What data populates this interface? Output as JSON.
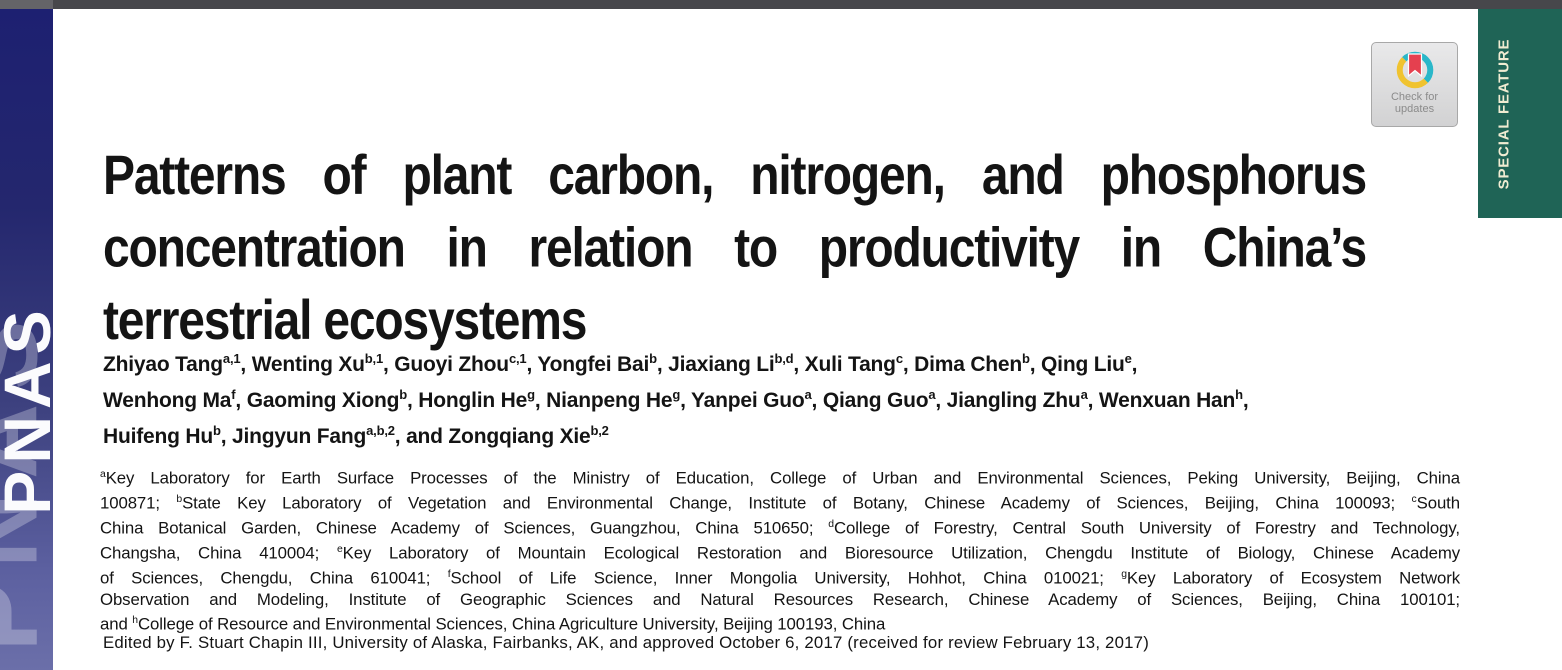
{
  "masthead": {
    "journal_logo": "PNAS",
    "journal_watermark": "PNAS",
    "special_feature_label": "SPECIAL FEATURE",
    "check_updates": {
      "line1": "Check for",
      "line2": "updates"
    }
  },
  "article": {
    "title_lines": [
      "Patterns of plant carbon, nitrogen, and phosphorus",
      "concentration in relation to productivity in China’s",
      "terrestrial ecosystems"
    ],
    "author_lines": [
      [
        {
          "t": "Zhiyao Tang"
        },
        {
          "t": "a,1",
          "sup": true
        },
        {
          "t": ", Wenting Xu"
        },
        {
          "t": "b,1",
          "sup": true
        },
        {
          "t": ", Guoyi Zhou"
        },
        {
          "t": "c,1",
          "sup": true
        },
        {
          "t": ", Yongfei Bai"
        },
        {
          "t": "b",
          "sup": true
        },
        {
          "t": ", Jiaxiang Li"
        },
        {
          "t": "b,d",
          "sup": true
        },
        {
          "t": ", Xuli Tang"
        },
        {
          "t": "c",
          "sup": true
        },
        {
          "t": ", Dima Chen"
        },
        {
          "t": "b",
          "sup": true
        },
        {
          "t": ", Qing Liu"
        },
        {
          "t": "e",
          "sup": true
        },
        {
          "t": ","
        }
      ],
      [
        {
          "t": "Wenhong Ma"
        },
        {
          "t": "f",
          "sup": true
        },
        {
          "t": ", Gaoming Xiong"
        },
        {
          "t": "b",
          "sup": true
        },
        {
          "t": ", Honglin He"
        },
        {
          "t": "g",
          "sup": true
        },
        {
          "t": ", Nianpeng He"
        },
        {
          "t": "g",
          "sup": true
        },
        {
          "t": ", Yanpei Guo"
        },
        {
          "t": "a",
          "sup": true
        },
        {
          "t": ", Qiang Guo"
        },
        {
          "t": "a",
          "sup": true
        },
        {
          "t": ", Jiangling Zhu"
        },
        {
          "t": "a",
          "sup": true
        },
        {
          "t": ", Wenxuan Han"
        },
        {
          "t": "h",
          "sup": true
        },
        {
          "t": ","
        }
      ],
      [
        {
          "t": "Huifeng Hu"
        },
        {
          "t": "b",
          "sup": true
        },
        {
          "t": ", Jingyun Fang"
        },
        {
          "t": "a,b,2",
          "sup": true
        },
        {
          "t": ", and Zongqiang Xie"
        },
        {
          "t": "b,2",
          "sup": true
        }
      ]
    ],
    "affiliation_lines": [
      [
        {
          "t": "a",
          "sup": true
        },
        {
          "t": "Key Laboratory for Earth Surface Processes of the Ministry of Education, College of Urban and Environmental Sciences, Peking University, Beijing, China"
        }
      ],
      [
        {
          "t": "100871; "
        },
        {
          "t": "b",
          "sup": true
        },
        {
          "t": "State Key Laboratory of Vegetation and Environmental Change, Institute of Botany, Chinese Academy of Sciences, Beijing, China 100093; "
        },
        {
          "t": "c",
          "sup": true
        },
        {
          "t": "South"
        }
      ],
      [
        {
          "t": "China Botanical Garden, Chinese Academy of Sciences, Guangzhou, China 510650; "
        },
        {
          "t": "d",
          "sup": true
        },
        {
          "t": "College of Forestry, Central South University of Forestry and Technology,"
        }
      ],
      [
        {
          "t": "Changsha, China 410004; "
        },
        {
          "t": "e",
          "sup": true
        },
        {
          "t": "Key Laboratory of Mountain Ecological Restoration and Bioresource Utilization, Chengdu Institute of Biology, Chinese Academy"
        }
      ],
      [
        {
          "t": "of Sciences, Chengdu, China 610041; "
        },
        {
          "t": "f",
          "sup": true
        },
        {
          "t": "School of Life Science, Inner Mongolia University, Hohhot, China 010021; "
        },
        {
          "t": "g",
          "sup": true
        },
        {
          "t": "Key Laboratory of Ecosystem Network"
        }
      ],
      [
        {
          "t": "Observation and Modeling, Institute of Geographic Sciences and Natural Resources Research, Chinese Academy of Sciences, Beijing, China 100101;"
        }
      ],
      [
        {
          "t": "and "
        },
        {
          "t": "h",
          "sup": true
        },
        {
          "t": "College of Resource and Environmental Sciences, China Agriculture University, Beijing 100193, China"
        }
      ]
    ],
    "edited_by": "Edited by F. Stuart Chapin III, University of Alaska, Fairbanks, AK, and approved October 6, 2017 (received for review February 13, 2017)"
  },
  "colors": {
    "sidebar_top": "#1d2071",
    "sidebar_bottom": "#6b6fa9",
    "topbar": "#47474b",
    "special_feature_bg": "#1f6456",
    "special_feature_text": "#f0ecd2",
    "badge_bg": "#d2d2d3",
    "crossmark_teal": "#2ab7c9",
    "crossmark_yellow": "#f0c330",
    "crossmark_red": "#e5404f",
    "text": "#141414"
  }
}
